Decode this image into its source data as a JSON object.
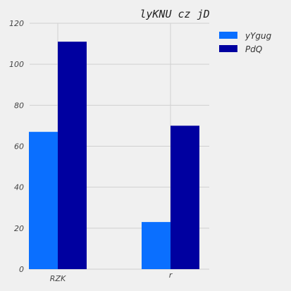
{
  "chart_data": {
    "type": "bar",
    "title": "lyKNU cz jD",
    "xlabel": "",
    "ylabel": "",
    "categories": [
      "RZK",
      "r"
    ],
    "series": [
      {
        "name": "yYgug",
        "values": [
          67,
          23
        ],
        "color": "#0a6fff"
      },
      {
        "name": "PdQ",
        "values": [
          111,
          70
        ],
        "color": "#0000a0"
      }
    ],
    "ylim": [
      0,
      120
    ],
    "yticks": [
      0,
      20,
      40,
      60,
      80,
      100,
      120
    ],
    "grid": true,
    "legend_position": "top-right"
  }
}
